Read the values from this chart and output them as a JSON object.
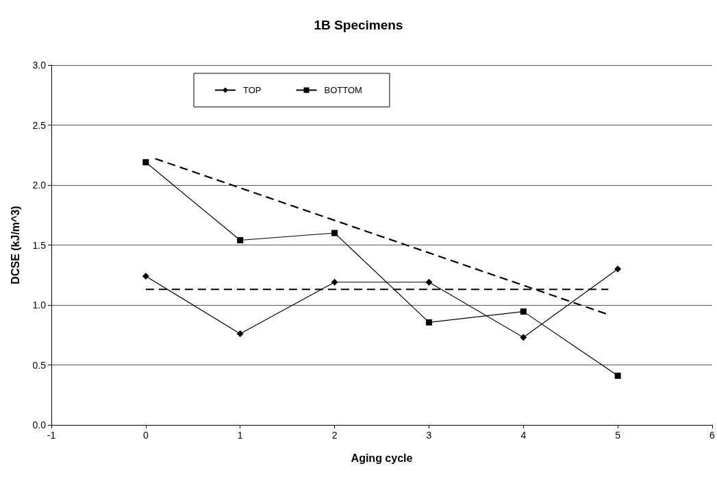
{
  "chart_data": {
    "type": "line",
    "title": "1B Specimens",
    "xlabel": "Aging cycle",
    "ylabel": "DCSE (kJ/m^3)",
    "x": [
      0,
      1,
      2,
      3,
      4,
      5
    ],
    "series": [
      {
        "name": "TOP",
        "color": "#000000",
        "marker": "diamond",
        "values": [
          1.24,
          0.76,
          1.19,
          1.19,
          0.73,
          1.3
        ]
      },
      {
        "name": "BOTTOM",
        "color": "#000000",
        "marker": "square",
        "values": [
          2.19,
          1.54,
          1.6,
          0.855,
          0.945,
          0.41
        ]
      },
      {
        "type": "line",
        "color": "#000000",
        "marker": "none",
        "line_style": "dashed",
        "x": [
          0.1,
          4.9
        ],
        "values": [
          2.22,
          0.92
        ]
      },
      {
        "type": "line",
        "color": "#000000",
        "marker": "none",
        "line_style": "dashed",
        "x": [
          0,
          4.9
        ],
        "values": [
          1.13,
          1.13
        ]
      }
    ],
    "xlim": [
      -1,
      6
    ],
    "xticks": [
      -1,
      0,
      1,
      2,
      3,
      4,
      5,
      6
    ],
    "ylim": [
      0,
      3
    ],
    "yticks": [
      {
        "value": 0,
        "label": "0.0"
      },
      {
        "value": 0.5,
        "label": "0.5"
      },
      {
        "value": 1,
        "label": "1.0"
      },
      {
        "value": 1.5,
        "label": "1.5"
      },
      {
        "value": 2,
        "label": "2.0"
      },
      {
        "value": 2.5,
        "label": "2.5"
      },
      {
        "value": 3,
        "label": "3.0"
      }
    ],
    "grid": "y",
    "legend": "top left",
    "line_style": "solid"
  }
}
